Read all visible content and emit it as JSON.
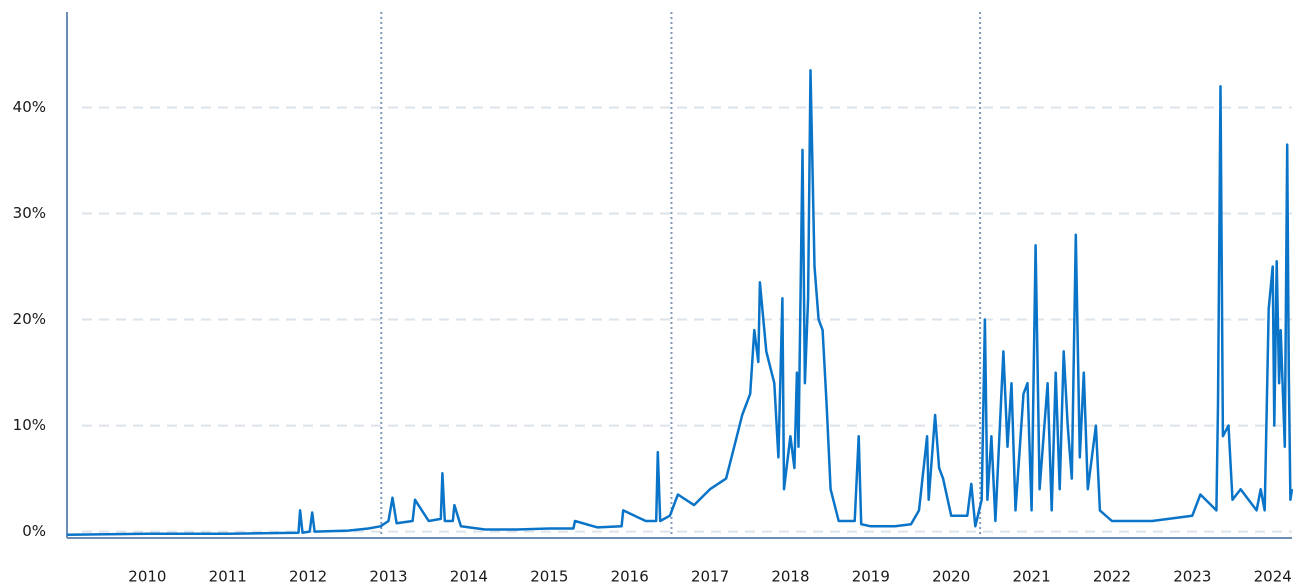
{
  "chart_data": {
    "type": "line",
    "x": [
      2009.0,
      2010.0,
      2011.0,
      2011.88,
      2011.9,
      2011.93,
      2012.02,
      2012.05,
      2012.08,
      2012.5,
      2012.75,
      2012.9,
      2013.0,
      2013.05,
      2013.1,
      2013.3,
      2013.33,
      2013.5,
      2013.65,
      2013.67,
      2013.7,
      2013.8,
      2013.82,
      2013.9,
      2014.2,
      2014.6,
      2015.0,
      2015.3,
      2015.32,
      2015.6,
      2015.9,
      2015.92,
      2016.2,
      2016.33,
      2016.35,
      2016.38,
      2016.5,
      2016.6,
      2016.8,
      2017.0,
      2017.2,
      2017.3,
      2017.4,
      2017.5,
      2017.55,
      2017.6,
      2017.62,
      2017.7,
      2017.8,
      2017.85,
      2017.9,
      2017.92,
      2018.0,
      2018.05,
      2018.08,
      2018.1,
      2018.15,
      2018.18,
      2018.22,
      2018.25,
      2018.3,
      2018.35,
      2018.4,
      2018.45,
      2018.5,
      2018.6,
      2018.8,
      2018.85,
      2018.88,
      2019.0,
      2019.3,
      2019.5,
      2019.6,
      2019.7,
      2019.72,
      2019.8,
      2019.85,
      2019.9,
      2020.0,
      2020.2,
      2020.25,
      2020.3,
      2020.38,
      2020.42,
      2020.45,
      2020.5,
      2020.55,
      2020.65,
      2020.7,
      2020.75,
      2020.8,
      2020.9,
      2020.95,
      2021.0,
      2021.05,
      2021.1,
      2021.2,
      2021.25,
      2021.3,
      2021.35,
      2021.4,
      2021.45,
      2021.5,
      2021.55,
      2021.6,
      2021.65,
      2021.7,
      2021.8,
      2021.85,
      2022.0,
      2022.5,
      2023.0,
      2023.1,
      2023.3,
      2023.32,
      2023.35,
      2023.38,
      2023.45,
      2023.5,
      2023.6,
      2023.8,
      2023.85,
      2023.9,
      2023.95,
      2024.0,
      2024.02,
      2024.05,
      2024.08,
      2024.1,
      2024.15,
      2024.18,
      2024.2,
      2024.22,
      2024.24
    ],
    "series": [
      {
        "name": "series",
        "color": "#0a74c8",
        "values": [
          -0.3,
          -0.2,
          -0.2,
          -0.1,
          2.0,
          -0.1,
          0.0,
          1.8,
          0.0,
          0.1,
          0.3,
          0.5,
          1.0,
          3.2,
          0.8,
          1.0,
          3.0,
          1.0,
          1.2,
          5.5,
          1.0,
          1.0,
          2.5,
          0.5,
          0.2,
          0.2,
          0.3,
          0.3,
          1.0,
          0.4,
          0.5,
          2.0,
          1.0,
          1.0,
          7.5,
          1.0,
          1.5,
          3.5,
          2.5,
          4.0,
          5.0,
          8.0,
          11.0,
          13.0,
          19.0,
          16.0,
          23.5,
          17.0,
          14.0,
          7.0,
          22.0,
          4.0,
          9.0,
          6.0,
          15.0,
          8.0,
          36.0,
          14.0,
          22.0,
          43.5,
          25.0,
          20.0,
          19.0,
          12.0,
          4.0,
          1.0,
          1.0,
          9.0,
          0.7,
          0.5,
          0.5,
          0.7,
          2.0,
          9.0,
          3.0,
          11.0,
          6.0,
          5.0,
          1.5,
          1.5,
          4.5,
          0.5,
          3.0,
          20.0,
          3.0,
          9.0,
          1.0,
          17.0,
          8.0,
          14.0,
          2.0,
          13.0,
          14.0,
          2.0,
          27.0,
          4.0,
          14.0,
          2.0,
          15.0,
          4.0,
          17.0,
          10.0,
          5.0,
          28.0,
          7.0,
          15.0,
          4.0,
          10.0,
          2.0,
          1.0,
          1.0,
          1.5,
          3.5,
          2.0,
          12.0,
          42.0,
          9.0,
          10.0,
          3.0,
          4.0,
          2.0,
          4.0,
          2.0,
          21.0,
          25.0,
          10.0,
          25.5,
          14.0,
          19.0,
          8.0,
          36.5,
          15.0,
          3.0,
          4.0
        ]
      }
    ],
    "xlim": [
      2009.0,
      2024.24
    ],
    "xticks": [
      2010,
      2011,
      2012,
      2013,
      2014,
      2015,
      2016,
      2017,
      2018,
      2019,
      2020,
      2021,
      2022,
      2023,
      2024
    ],
    "ylim": [
      -0.6,
      49
    ],
    "yticks": [
      {
        "value": 0,
        "label": "0%"
      },
      {
        "value": 10,
        "label": "10%"
      },
      {
        "value": 20,
        "label": "20%"
      },
      {
        "value": 30,
        "label": "30%"
      },
      {
        "value": 40,
        "label": "40%"
      }
    ],
    "vlines": [
      2012.91,
      2016.52,
      2020.36
    ],
    "grid": true
  }
}
